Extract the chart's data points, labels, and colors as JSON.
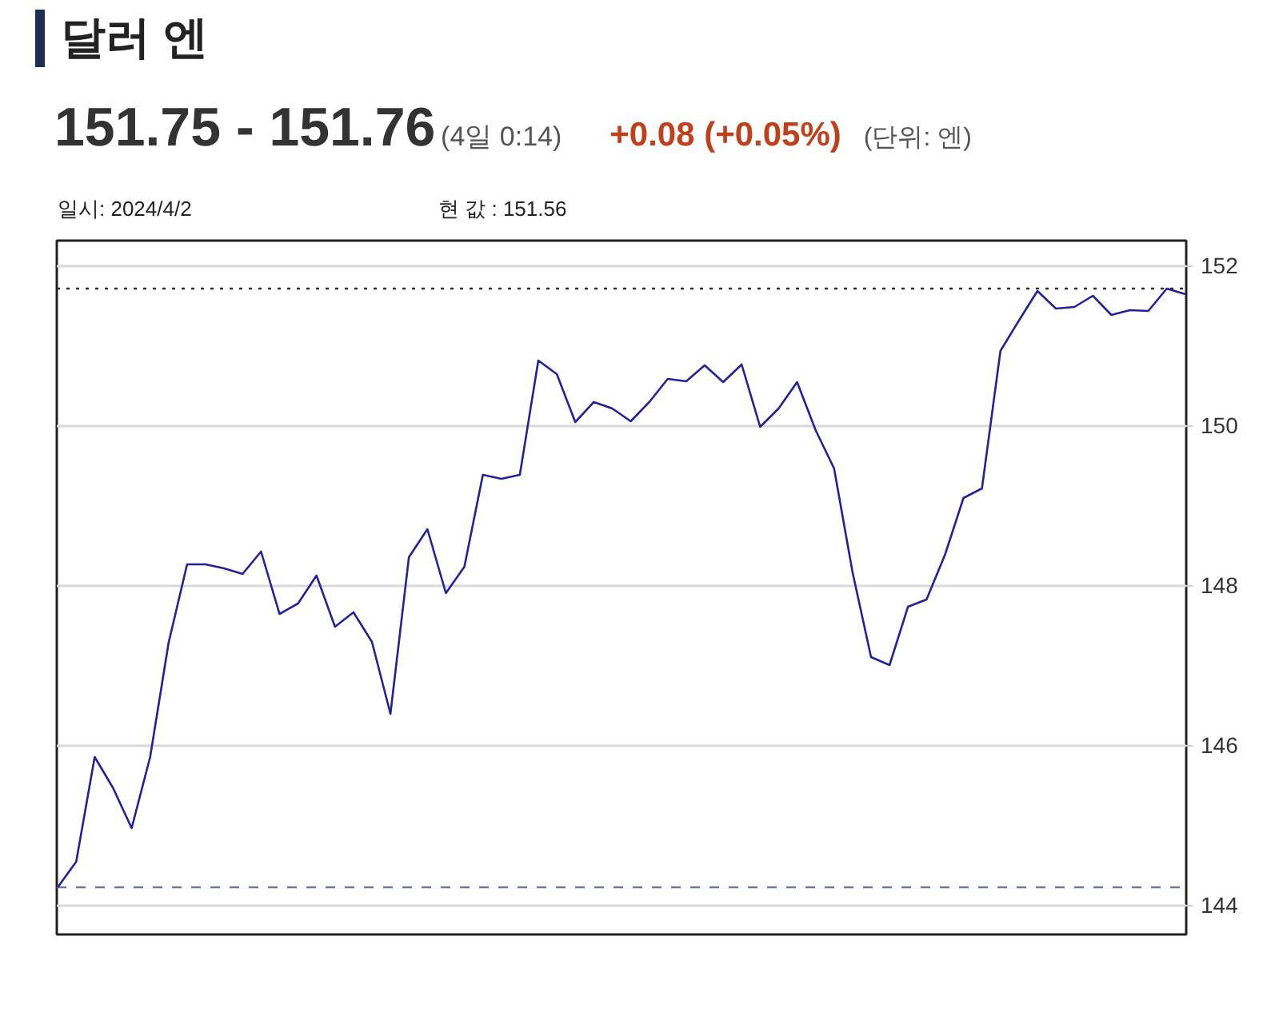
{
  "chart_data": {
    "type": "line",
    "title": "달러 엔",
    "subtitle": "151.75 - 151.76",
    "annotations": [
      "(4일 0:14)",
      "+0.08  (+0.05%)",
      "(단위: 엔)",
      "일시: 2024/4/2",
      "현 값 : 151.56"
    ],
    "categories": [
      null,
      null,
      null,
      null,
      null,
      null,
      null,
      null,
      null,
      null,
      null,
      null,
      null,
      null,
      null,
      null,
      null,
      null,
      null,
      null,
      null,
      null,
      null,
      null,
      null,
      null,
      null,
      null,
      null,
      null,
      null,
      null,
      null,
      null,
      null,
      null,
      null,
      null,
      null,
      null,
      null,
      null,
      null,
      null,
      null,
      null,
      null,
      null,
      null,
      null,
      null,
      null,
      null,
      null,
      null,
      null,
      null,
      null,
      null,
      null,
      null,
      null
    ],
    "series": [
      {
        "color": "#22229a",
        "values": [
          144.22,
          144.54,
          145.85,
          145.46,
          144.96,
          145.85,
          147.28,
          148.26,
          148.26,
          148.21,
          148.14,
          148.42,
          147.64,
          147.77,
          148.12,
          147.48,
          147.66,
          147.29,
          146.39,
          148.35,
          148.7,
          147.9,
          148.23,
          149.38,
          149.33,
          149.38,
          150.81,
          150.64,
          150.04,
          150.29,
          150.21,
          150.05,
          150.29,
          150.58,
          150.55,
          150.75,
          150.54,
          150.76,
          149.98,
          150.21,
          150.54,
          149.94,
          149.46,
          148.16,
          147.1,
          147.0,
          147.73,
          147.82,
          148.38,
          149.09,
          149.21,
          150.93,
          151.31,
          151.68,
          151.46,
          151.48,
          151.62,
          151.38,
          151.44,
          151.43,
          151.71,
          151.64
        ]
      }
    ],
    "ylim": [
      143.63,
      152.31
    ],
    "yticks": [
      144,
      146,
      148,
      150,
      152
    ],
    "ref_lines": [
      {
        "axis": "y",
        "value": 151.71,
        "color": "#3a2a2a",
        "line_style": "dotted"
      },
      {
        "axis": "y",
        "value": 144.22,
        "color": "#6a7a9a",
        "line_style": "dashed"
      }
    ],
    "grid": "y",
    "tick_labels": "y",
    "marker": "none",
    "line_style": "solid"
  }
}
